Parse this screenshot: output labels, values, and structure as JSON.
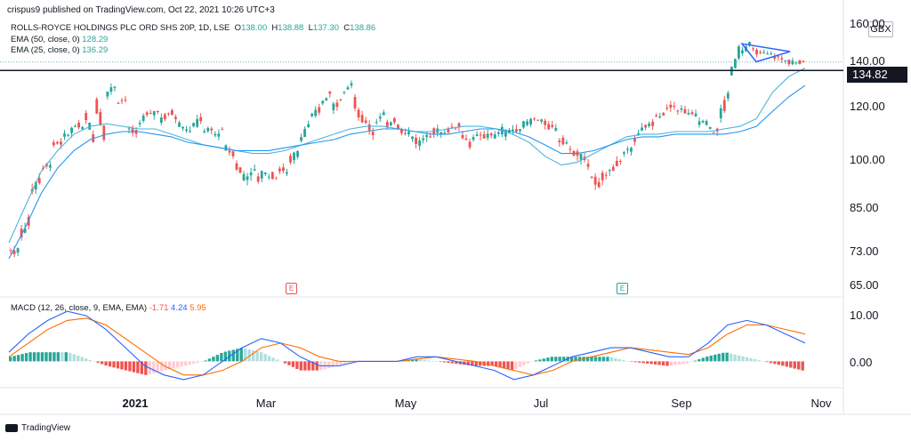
{
  "header": {
    "publisher": "crispus9 published on TradingView.com, Oct 22, 2021 10:26 UTC+3"
  },
  "symbol": {
    "name": "ROLLS-ROYCE HOLDINGS PLC ORD SHS 20P, 1D, LSE",
    "ohlc_labels": [
      "O",
      "H",
      "L",
      "C"
    ],
    "ohlc_values": [
      "138.00",
      "138.88",
      "137.30",
      "138.86"
    ]
  },
  "indicators": {
    "ema50": {
      "label": "EMA (50, close, 0)",
      "value": "128.29"
    },
    "ema25": {
      "label": "EMA (25, close, 0)",
      "value": "136.29"
    },
    "macd": {
      "label": "MACD (12, 26, close, 9, EMA, EMA)",
      "hist": "-1.71",
      "macd": "4.24",
      "signal": "5.95"
    }
  },
  "axis": {
    "currency": "GBX",
    "price_ticks": [
      "160.00",
      "140.00",
      "120.00",
      "100.00",
      "85.00",
      "73.00",
      "65.00"
    ],
    "macd_ticks": [
      "10.00",
      "0.00"
    ],
    "x_ticks": [
      "2021",
      "Mar",
      "May",
      "Jul",
      "Sep",
      "Nov"
    ],
    "last_price_tag": "134.82"
  },
  "earnings_markers": [
    "E",
    "E"
  ],
  "footer": {
    "brand": "TradingView"
  },
  "colors": {
    "up": "#26a69a",
    "down": "#ef5350",
    "ema_fast": "#4fb3d9",
    "ema_slow": "#2196f3",
    "macd_line": "#2962ff",
    "signal_line": "#ff6d00",
    "triangle": "#2962ff"
  },
  "chart_data": {
    "type": "candlestick",
    "title": "ROLLS-ROYCE HOLDINGS PLC ORD SHS 20P, 1D, LSE",
    "y_scale": "log",
    "ylim": [
      63,
      162
    ],
    "horizontal_line": 134.82,
    "series_close": [
      [
        72,
        72
      ],
      [
        76,
        80
      ],
      [
        88,
        93
      ],
      [
        95,
        98
      ],
      [
        104,
        105
      ],
      [
        106,
        110
      ],
      [
        112,
        110
      ],
      [
        117,
        105
      ],
      [
        122,
        107
      ],
      [
        124,
        128
      ],
      [
        121,
        122
      ],
      [
        110,
        108
      ],
      [
        112,
        116
      ],
      [
        115,
        118
      ],
      [
        113,
        116
      ],
      [
        118,
        111
      ],
      [
        111,
        109
      ],
      [
        110,
        115
      ],
      [
        108,
        110
      ],
      [
        107,
        110
      ],
      [
        103,
        101
      ],
      [
        98,
        92
      ],
      [
        93,
        95
      ],
      [
        92,
        95
      ],
      [
        94,
        93
      ],
      [
        96,
        94
      ],
      [
        98,
        102
      ],
      [
        106,
        112
      ],
      [
        114,
        118
      ],
      [
        120,
        125
      ],
      [
        118,
        123
      ],
      [
        124,
        130
      ],
      [
        122,
        112
      ],
      [
        114,
        108
      ],
      [
        112,
        116
      ],
      [
        110,
        115
      ],
      [
        112,
        108
      ],
      [
        109,
        105
      ],
      [
        104,
        108
      ],
      [
        106,
        111
      ],
      [
        108,
        110
      ],
      [
        110,
        112
      ],
      [
        108,
        104
      ],
      [
        106,
        108
      ],
      [
        106,
        109
      ],
      [
        106,
        110
      ],
      [
        108,
        110
      ],
      [
        109,
        112
      ],
      [
        112,
        114
      ],
      [
        114,
        112
      ],
      [
        111,
        110
      ],
      [
        106,
        105
      ],
      [
        102,
        101
      ],
      [
        100,
        97
      ],
      [
        94,
        89
      ],
      [
        92,
        96
      ],
      [
        96,
        99
      ],
      [
        100,
        104
      ],
      [
        106,
        110
      ],
      [
        110,
        113
      ],
      [
        114,
        116
      ],
      [
        118,
        120
      ],
      [
        118,
        117
      ],
      [
        116,
        115
      ],
      [
        113,
        112
      ],
      [
        110,
        109
      ],
      [
        114,
        125
      ],
      [
        132,
        146
      ],
      [
        144,
        148
      ],
      [
        145,
        143
      ],
      [
        143,
        142
      ],
      [
        142,
        140
      ],
      [
        140,
        138
      ],
      [
        138,
        139
      ]
    ],
    "ema25": [
      [
        0,
        74
      ],
      [
        1,
        84
      ],
      [
        2,
        95
      ],
      [
        3,
        102
      ],
      [
        4,
        108
      ],
      [
        5,
        111
      ],
      [
        6,
        112
      ],
      [
        7,
        111
      ],
      [
        8,
        110
      ],
      [
        9,
        110
      ],
      [
        10,
        108
      ],
      [
        11,
        106
      ],
      [
        12,
        104
      ],
      [
        13,
        103
      ],
      [
        14,
        102
      ],
      [
        15,
        101
      ],
      [
        16,
        101
      ],
      [
        17,
        102
      ],
      [
        18,
        104
      ],
      [
        19,
        106
      ],
      [
        20,
        108
      ],
      [
        21,
        110
      ],
      [
        22,
        111
      ],
      [
        23,
        111
      ],
      [
        24,
        110
      ],
      [
        25,
        109
      ],
      [
        26,
        109
      ],
      [
        27,
        110
      ],
      [
        28,
        111
      ],
      [
        29,
        111
      ],
      [
        30,
        110
      ],
      [
        31,
        108
      ],
      [
        32,
        105
      ],
      [
        33,
        100
      ],
      [
        34,
        97
      ],
      [
        35,
        98
      ],
      [
        36,
        101
      ],
      [
        37,
        104
      ],
      [
        38,
        107
      ],
      [
        39,
        108
      ],
      [
        40,
        108
      ],
      [
        41,
        109
      ],
      [
        42,
        109
      ],
      [
        43,
        109
      ],
      [
        44,
        110
      ],
      [
        45,
        111
      ],
      [
        46,
        114
      ],
      [
        47,
        125
      ],
      [
        48,
        132
      ],
      [
        49,
        136
      ]
    ],
    "ema50": [
      [
        0,
        70
      ],
      [
        1,
        78
      ],
      [
        2,
        88
      ],
      [
        3,
        96
      ],
      [
        4,
        102
      ],
      [
        5,
        106
      ],
      [
        6,
        108
      ],
      [
        7,
        109
      ],
      [
        8,
        109
      ],
      [
        9,
        108
      ],
      [
        10,
        107
      ],
      [
        11,
        105
      ],
      [
        12,
        104
      ],
      [
        13,
        103
      ],
      [
        14,
        102
      ],
      [
        15,
        102
      ],
      [
        16,
        102
      ],
      [
        17,
        103
      ],
      [
        18,
        104
      ],
      [
        19,
        105
      ],
      [
        20,
        106
      ],
      [
        21,
        108
      ],
      [
        22,
        109
      ],
      [
        23,
        110
      ],
      [
        24,
        110
      ],
      [
        25,
        109
      ],
      [
        26,
        108
      ],
      [
        27,
        108
      ],
      [
        28,
        109
      ],
      [
        29,
        110
      ],
      [
        30,
        110
      ],
      [
        31,
        109
      ],
      [
        32,
        107
      ],
      [
        33,
        104
      ],
      [
        34,
        101
      ],
      [
        35,
        101
      ],
      [
        36,
        102
      ],
      [
        37,
        104
      ],
      [
        38,
        106
      ],
      [
        39,
        107
      ],
      [
        40,
        107
      ],
      [
        41,
        108
      ],
      [
        42,
        108
      ],
      [
        43,
        108
      ],
      [
        44,
        108
      ],
      [
        45,
        109
      ],
      [
        46,
        111
      ],
      [
        47,
        117
      ],
      [
        48,
        123
      ],
      [
        49,
        128
      ]
    ],
    "macd_ylim": [
      -5,
      12
    ],
    "macd_line": [
      [
        0,
        2
      ],
      [
        1,
        6
      ],
      [
        2,
        9
      ],
      [
        3,
        11
      ],
      [
        4,
        10
      ],
      [
        5,
        7
      ],
      [
        6,
        3
      ],
      [
        7,
        -1
      ],
      [
        8,
        -3
      ],
      [
        9,
        -4
      ],
      [
        10,
        -3
      ],
      [
        11,
        0
      ],
      [
        12,
        3
      ],
      [
        13,
        5
      ],
      [
        14,
        4
      ],
      [
        15,
        1
      ],
      [
        16,
        -1
      ],
      [
        17,
        -1
      ],
      [
        18,
        0
      ],
      [
        19,
        0
      ],
      [
        20,
        0
      ],
      [
        21,
        1
      ],
      [
        22,
        1
      ],
      [
        23,
        0
      ],
      [
        24,
        -1
      ],
      [
        25,
        -2
      ],
      [
        26,
        -4
      ],
      [
        27,
        -3
      ],
      [
        28,
        -1
      ],
      [
        29,
        1
      ],
      [
        30,
        2
      ],
      [
        31,
        3
      ],
      [
        32,
        3
      ],
      [
        33,
        2
      ],
      [
        34,
        1
      ],
      [
        35,
        1
      ],
      [
        36,
        4
      ],
      [
        37,
        8
      ],
      [
        38,
        9
      ],
      [
        39,
        8
      ],
      [
        40,
        6
      ],
      [
        41,
        4
      ]
    ],
    "signal_line": [
      [
        0,
        1
      ],
      [
        1,
        4
      ],
      [
        2,
        7
      ],
      [
        3,
        9
      ],
      [
        4,
        9.5
      ],
      [
        5,
        8
      ],
      [
        6,
        5
      ],
      [
        7,
        2
      ],
      [
        8,
        -1
      ],
      [
        9,
        -3
      ],
      [
        10,
        -3
      ],
      [
        11,
        -2
      ],
      [
        12,
        0
      ],
      [
        13,
        3
      ],
      [
        14,
        4
      ],
      [
        15,
        3
      ],
      [
        16,
        1
      ],
      [
        17,
        0
      ],
      [
        18,
        0
      ],
      [
        19,
        0
      ],
      [
        20,
        0
      ],
      [
        21,
        0.5
      ],
      [
        22,
        1
      ],
      [
        23,
        0.5
      ],
      [
        24,
        0
      ],
      [
        25,
        -1
      ],
      [
        26,
        -2
      ],
      [
        27,
        -3
      ],
      [
        28,
        -2
      ],
      [
        29,
        0
      ],
      [
        30,
        1
      ],
      [
        31,
        2
      ],
      [
        32,
        3
      ],
      [
        33,
        2.5
      ],
      [
        34,
        2
      ],
      [
        35,
        1.5
      ],
      [
        36,
        3
      ],
      [
        37,
        6
      ],
      [
        38,
        8
      ],
      [
        39,
        8
      ],
      [
        40,
        7
      ],
      [
        41,
        6
      ]
    ]
  }
}
